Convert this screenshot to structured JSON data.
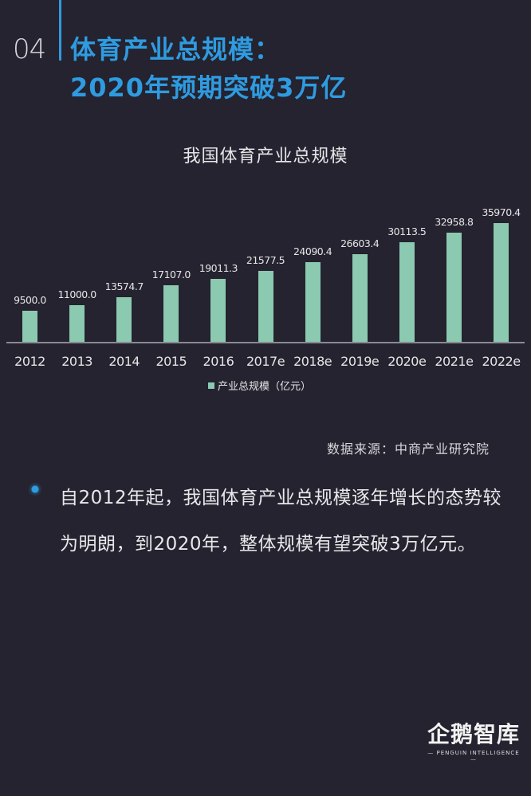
{
  "header": {
    "section_number": "04",
    "title_line1": "体育产业总规模：",
    "title_line2": "2020年预期突破3万亿",
    "accent_color": "#2f9be0"
  },
  "chart_data": {
    "type": "bar",
    "title": "我国体育产业总规模",
    "categories": [
      "2012",
      "2013",
      "2014",
      "2015",
      "2016",
      "2017e",
      "2018e",
      "2019e",
      "2020e",
      "2021e",
      "2022e"
    ],
    "series": [
      {
        "name": "产业总规模（亿元）",
        "color": "#8cc9b1",
        "values": [
          9500.0,
          11000.0,
          13574.7,
          17107.0,
          19011.3,
          21577.5,
          24090.4,
          26603.4,
          30113.5,
          32958.8,
          35970.4
        ]
      }
    ],
    "value_labels": [
      "9500.0",
      "11000.0",
      "13574.7",
      "17107.0",
      "19011.3",
      "21577.5",
      "24090.4",
      "26603.4",
      "30113.5",
      "32958.8",
      "35970.4"
    ],
    "xlabel": "",
    "ylabel": "",
    "grid": false,
    "legend_position": "bottom"
  },
  "legend": {
    "label": "产业总规模（亿元）"
  },
  "source": "数据来源：中商产业研究院",
  "body": {
    "bullet_color": "#2f9be0",
    "text": "自2012年起，我国体育产业总规模逐年增长的态势较为明朗，到2020年，整体规模有望突破3万亿元。"
  },
  "logo": {
    "cn": "企鹅智库",
    "en": "— PENGUIN INTELLIGENCE —"
  }
}
